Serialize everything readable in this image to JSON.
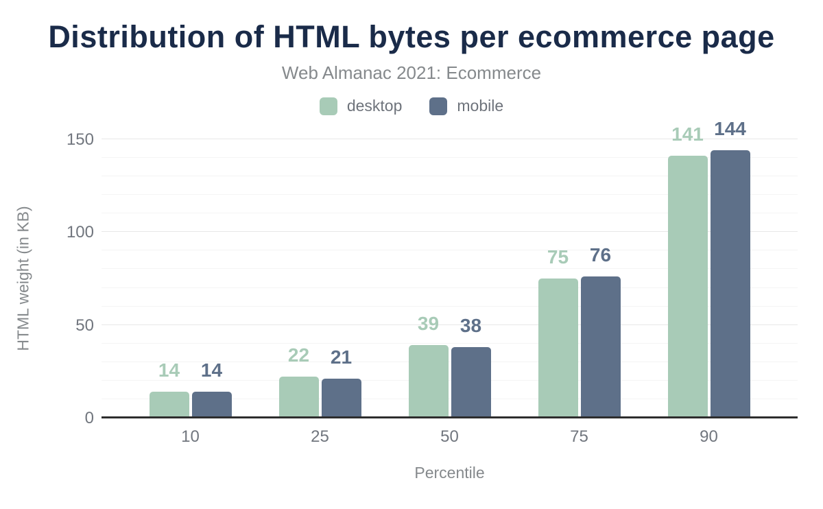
{
  "chart_data": {
    "type": "bar",
    "title": "Distribution of HTML bytes per ecommerce page",
    "subtitle": "Web Almanac 2021: Ecommerce",
    "xlabel": "Percentile",
    "ylabel": "HTML weight (in KB)",
    "categories": [
      "10",
      "25",
      "50",
      "75",
      "90"
    ],
    "series": [
      {
        "name": "desktop",
        "color": "#a8cbb7",
        "values": [
          14,
          22,
          39,
          75,
          141
        ]
      },
      {
        "name": "mobile",
        "color": "#5e7089",
        "values": [
          14,
          21,
          38,
          76,
          144
        ]
      }
    ],
    "ylim": [
      0,
      150
    ],
    "yticks": [
      0,
      50,
      100,
      150
    ],
    "minor_grid_step": 10,
    "grid": "on",
    "legend_position": "top",
    "value_labels": "above-bars"
  },
  "colors": {
    "title": "#1a2b49",
    "subtitle": "#85898c",
    "tick_text": "#71767e",
    "major_grid": "#e8e8e8",
    "minor_grid": "#f4f4f4",
    "baseline": "#2d2d2d"
  }
}
